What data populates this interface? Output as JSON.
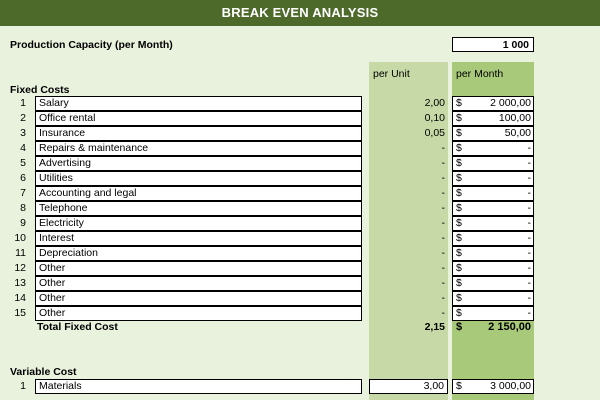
{
  "title": "BREAK EVEN ANALYSIS",
  "capacity": {
    "label": "Production Capacity (per Month)",
    "value": "1 000"
  },
  "headers": {
    "per_unit": "per Unit",
    "per_month": "per Month"
  },
  "fixed_costs": {
    "title": "Fixed Costs",
    "rows": [
      {
        "num": "1",
        "name": "Salary",
        "unit": "2,00",
        "cur": "$",
        "month": "2 000,00"
      },
      {
        "num": "2",
        "name": "Office rental",
        "unit": "0,10",
        "cur": "$",
        "month": "100,00"
      },
      {
        "num": "3",
        "name": "Insurance",
        "unit": "0,05",
        "cur": "$",
        "month": "50,00"
      },
      {
        "num": "4",
        "name": "Repairs & maintenance",
        "unit": "-",
        "cur": "$",
        "month": "-"
      },
      {
        "num": "5",
        "name": "Advertising",
        "unit": "-",
        "cur": "$",
        "month": "-"
      },
      {
        "num": "6",
        "name": "Utilities",
        "unit": "-",
        "cur": "$",
        "month": "-"
      },
      {
        "num": "7",
        "name": "Accounting and legal",
        "unit": "-",
        "cur": "$",
        "month": "-"
      },
      {
        "num": "8",
        "name": "Telephone",
        "unit": "-",
        "cur": "$",
        "month": "-"
      },
      {
        "num": "9",
        "name": "Electricity",
        "unit": "-",
        "cur": "$",
        "month": "-"
      },
      {
        "num": "10",
        "name": "Interest",
        "unit": "-",
        "cur": "$",
        "month": "-"
      },
      {
        "num": "11",
        "name": "Depreciation",
        "unit": "-",
        "cur": "$",
        "month": "-"
      },
      {
        "num": "12",
        "name": "Other",
        "unit": "-",
        "cur": "$",
        "month": "-"
      },
      {
        "num": "13",
        "name": "Other",
        "unit": "-",
        "cur": "$",
        "month": "-"
      },
      {
        "num": "14",
        "name": "Other",
        "unit": "-",
        "cur": "$",
        "month": "-"
      },
      {
        "num": "15",
        "name": "Other",
        "unit": "-",
        "cur": "$",
        "month": "-"
      }
    ],
    "total": {
      "label": "Total Fixed Cost",
      "unit": "2,15",
      "cur": "$",
      "month": "2 150,00"
    }
  },
  "variable_costs": {
    "title": "Variable Cost",
    "rows": [
      {
        "num": "1",
        "name": "Materials",
        "unit": "3,00",
        "cur": "$",
        "month": "3 000,00"
      }
    ]
  }
}
